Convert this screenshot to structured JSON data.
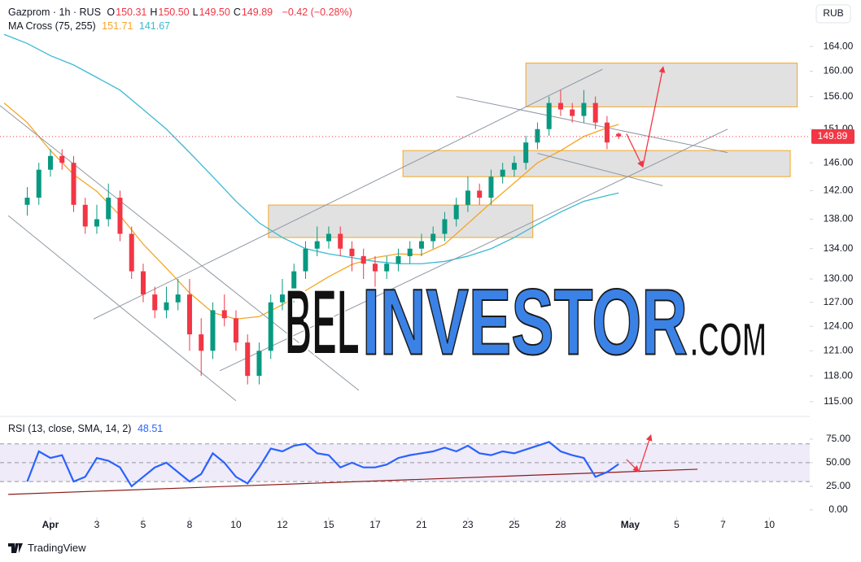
{
  "chart_data": [
    {
      "type": "candlestick",
      "title": "Gazprom · 1h · RUS",
      "ohlc_legend": [
        {
          "key": "O",
          "text": "150.31"
        },
        {
          "key": "H",
          "text": "150.50"
        },
        {
          "key": "L",
          "text": "149.50"
        },
        {
          "key": "C",
          "text": "149.89"
        }
      ],
      "change": "−0.42 (−0.28%)",
      "currency": "RUB",
      "log_scale": true,
      "up_color": "#089981",
      "down_color": "#f23645",
      "x": [
        -1,
        -0.5,
        0,
        0.5,
        1,
        1.5,
        2,
        2.5,
        3,
        3.5,
        4,
        4.5,
        5,
        5.5,
        6,
        6.5,
        7,
        7.5,
        8,
        8.5,
        9,
        9.5,
        10,
        10.5,
        11,
        11.5,
        12,
        12.5,
        13,
        13.5,
        14,
        14.5,
        15,
        15.5,
        16,
        16.5,
        17,
        17.5,
        18,
        18.5,
        19,
        19.5,
        20,
        20.5,
        21,
        21.5,
        22,
        22.5,
        23,
        23.5,
        24,
        24.5
      ],
      "open": [
        140,
        141,
        145,
        147,
        146,
        140,
        137,
        138,
        141,
        136,
        131,
        128,
        126,
        127,
        128,
        123,
        121,
        126,
        125,
        122,
        118,
        121,
        127,
        128,
        131,
        134,
        135,
        136,
        134,
        133,
        132,
        131,
        132,
        133,
        134,
        135,
        136,
        138,
        140,
        142,
        141,
        144,
        145,
        146,
        149,
        151,
        155,
        154,
        153,
        155,
        152,
        150.31
      ],
      "high": [
        142.5,
        146,
        148,
        148,
        147,
        141,
        140,
        143,
        142,
        137,
        132,
        129,
        129,
        130,
        130,
        125,
        127,
        128,
        126,
        123,
        122,
        128,
        130,
        132,
        135,
        137,
        137,
        137,
        135,
        134,
        133,
        133,
        134,
        135,
        136,
        137,
        139,
        141,
        144,
        143,
        145,
        146,
        147,
        150,
        152,
        156,
        157,
        155,
        157,
        156,
        153,
        150.5
      ],
      "low": [
        138.5,
        140,
        144,
        145,
        139,
        136,
        136,
        137,
        135,
        130,
        127,
        125,
        125,
        126,
        121,
        118,
        120,
        124,
        121,
        117,
        117,
        120,
        126,
        127,
        130,
        133,
        134,
        133,
        131,
        130,
        129,
        130,
        131,
        132,
        133,
        134,
        135,
        137,
        139,
        140,
        140,
        143,
        144,
        145,
        148,
        150,
        153,
        152,
        152,
        151,
        148,
        149.5
      ],
      "close": [
        141,
        145,
        147,
        146,
        140,
        137,
        138,
        141,
        136,
        131,
        128,
        126,
        127,
        128,
        123,
        121,
        126,
        125,
        122,
        118,
        121,
        127,
        128,
        131,
        134,
        135,
        136,
        134,
        133,
        132,
        131,
        132,
        133,
        134,
        135,
        136,
        138,
        140,
        142,
        141,
        144,
        145,
        146,
        149,
        151,
        155,
        154,
        153,
        155,
        152,
        149,
        149.89
      ],
      "overlay_title": "MA Cross (75, 255)",
      "overlays": [
        {
          "value_label": "151.71",
          "color": "#f5a623",
          "x": [
            -2,
            -1,
            0,
            1,
            2,
            3,
            4,
            5,
            6,
            7,
            8,
            9,
            10,
            11,
            12,
            13,
            14,
            15,
            16,
            17,
            18,
            19,
            20,
            21,
            22,
            23,
            24,
            24.5
          ],
          "values": [
            155,
            152,
            147.8,
            144.3,
            141.9,
            138.5,
            134.6,
            131.4,
            128.2,
            125.7,
            124.9,
            125.2,
            126.7,
            128.5,
            130.3,
            131.9,
            132.8,
            133.3,
            133.2,
            134.6,
            137.4,
            140.3,
            143.1,
            146,
            147.8,
            149.9,
            151.2,
            151.71
          ]
        },
        {
          "value_label": "141.67",
          "color": "#3bbad3",
          "x": [
            -2,
            -1,
            0,
            1,
            2,
            3,
            4,
            5,
            6,
            7,
            8,
            9,
            10,
            11,
            12,
            13,
            14,
            15,
            16,
            17,
            18,
            19,
            20,
            21,
            22,
            23,
            24,
            24.5
          ],
          "values": [
            166,
            164.5,
            162.5,
            161,
            159,
            157,
            154,
            151,
            147.5,
            144,
            140.5,
            137.5,
            135.5,
            134,
            133.3,
            132.8,
            132.3,
            132,
            132,
            132.3,
            133,
            134,
            135.5,
            137.3,
            139,
            140.5,
            141.3,
            141.67
          ]
        }
      ],
      "xlim": [
        -2.175,
        32.74
      ],
      "ylim": [
        113.5,
        171.8
      ],
      "xticks": [
        {
          "value": 0,
          "label": "Apr"
        },
        {
          "value": 2,
          "label": "3"
        },
        {
          "value": 4,
          "label": "5"
        },
        {
          "value": 6,
          "label": "8"
        },
        {
          "value": 8,
          "label": "10"
        },
        {
          "value": 10,
          "label": "12"
        },
        {
          "value": 12,
          "label": "15"
        },
        {
          "value": 14,
          "label": "17"
        },
        {
          "value": 16,
          "label": "21"
        },
        {
          "value": 18,
          "label": "23"
        },
        {
          "value": 20,
          "label": "25"
        },
        {
          "value": 22,
          "label": "28"
        },
        {
          "value": 25,
          "label": "May"
        },
        {
          "value": 27,
          "label": "5"
        },
        {
          "value": 29,
          "label": "7"
        },
        {
          "value": 31,
          "label": "10"
        }
      ],
      "yticks": [
        {
          "value": 115,
          "label": "115.00"
        },
        {
          "value": 118,
          "label": "118.00"
        },
        {
          "value": 121,
          "label": "121.00"
        },
        {
          "value": 124,
          "label": "124.00"
        },
        {
          "value": 127,
          "label": "127.00"
        },
        {
          "value": 130,
          "label": "130.00"
        },
        {
          "value": 134,
          "label": "134.00"
        },
        {
          "value": 138,
          "label": "138.00"
        },
        {
          "value": 142,
          "label": "142.00"
        },
        {
          "value": 146,
          "label": "146.00"
        },
        {
          "value": 151,
          "label": "151.00"
        },
        {
          "value": 156,
          "label": "156.00"
        },
        {
          "value": 160,
          "label": "160.00"
        },
        {
          "value": 164,
          "label": "164.00"
        }
      ],
      "grid": false,
      "zones": [
        {
          "x": [
            9.4,
            20.8
          ],
          "y": [
            135.5,
            139.97
          ]
        },
        {
          "x": [
            15.2,
            31.9
          ],
          "y": [
            144,
            147.8
          ]
        },
        {
          "x": [
            20.5,
            32.2
          ],
          "y": [
            154.4,
            161.3
          ]
        }
      ],
      "trendlines": [
        {
          "x": [
            -2.18,
            13.3
          ],
          "y": [
            154.6,
            116.3
          ]
        },
        {
          "x": [
            -1.82,
            8
          ],
          "y": [
            138.5,
            115.1
          ]
        },
        {
          "x": [
            1.86,
            23.8
          ],
          "y": [
            124.9,
            160.3
          ]
        },
        {
          "x": [
            7.3,
            29.2
          ],
          "y": [
            118.6,
            151
          ]
        },
        {
          "x": [
            17.5,
            29.2
          ],
          "y": [
            156,
            147.5
          ]
        },
        {
          "x": [
            21,
            26.4
          ],
          "y": [
            147.4,
            142.7
          ]
        }
      ],
      "arrows": [
        {
          "x": [
            24.84,
            25.54
          ],
          "y": [
            150.3,
            145.4
          ]
        },
        {
          "x": [
            25.54,
            26.42
          ],
          "y": [
            145.4,
            160.7
          ]
        }
      ],
      "arrow_color": "#f23645"
    },
    {
      "type": "line",
      "title": "RSI (13, close, SMA, 14, 2)",
      "value_label": "48.51",
      "color": "#2962ff",
      "values": [
        30,
        62,
        55,
        58,
        30,
        35,
        55,
        52,
        45,
        25,
        35,
        45,
        50,
        40,
        30,
        38,
        60,
        50,
        35,
        28,
        45,
        65,
        62,
        68,
        70,
        60,
        58,
        45,
        50,
        45,
        45,
        48,
        55,
        58,
        60,
        62,
        66,
        62,
        68,
        60,
        58,
        62,
        60,
        64,
        68,
        72,
        62,
        58,
        55,
        35,
        40,
        48.51
      ],
      "ylim": [
        -7,
        96.5
      ],
      "yticks": [
        {
          "value": 75,
          "label": "75.00"
        },
        {
          "value": 50,
          "label": "50.00"
        },
        {
          "value": 25,
          "label": "25.00"
        },
        {
          "value": 0,
          "label": "0.00"
        }
      ],
      "levels": [
        30,
        50,
        70
      ],
      "band_color": "rgba(126,87,194,0.12)",
      "trendline": {
        "x": [
          -1.82,
          27.9
        ],
        "y": [
          16.4,
          43.1
        ],
        "color": "#8b1a1a"
      },
      "arrows": [
        {
          "x": [
            24.84,
            25.37
          ],
          "y": [
            53.4,
            40.5
          ]
        },
        {
          "x": [
            25.37,
            25.89
          ],
          "y": [
            40.5,
            79.3
          ]
        }
      ]
    }
  ],
  "watermark": {
    "part1": "BEL",
    "part2": "INVESTOR",
    "part3": ".COM"
  },
  "footer": "TradingView"
}
